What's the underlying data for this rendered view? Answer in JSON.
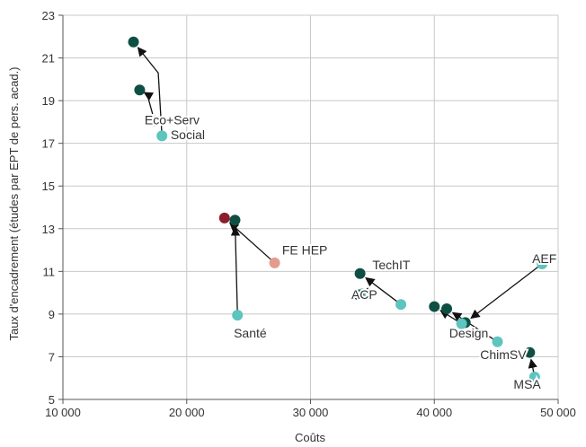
{
  "chart_data": {
    "type": "scatter",
    "xlabel": "Coûts",
    "ylabel": "Taux d'encadrement (études par EPT de pers. acad.)",
    "xlim": [
      10000,
      50000
    ],
    "ylim": [
      5,
      23
    ],
    "x_ticks": [
      10000,
      20000,
      30000,
      40000,
      50000
    ],
    "x_tick_labels": [
      "10 000",
      "20 000",
      "30 000",
      "40 000",
      "50 000"
    ],
    "y_ticks": [
      5,
      7,
      9,
      11,
      13,
      15,
      17,
      19,
      21,
      23
    ],
    "grid": true,
    "colors": {
      "start": "#5ec4be",
      "mid": "#0e4f44",
      "end": "#0e4f44",
      "hep_start": "#e49a8c",
      "hep_end": "#8c1d2a",
      "arrow": "#111111"
    },
    "groups": [
      {
        "label": "Eco+Serv",
        "points": [
          {
            "x": 17400,
            "y": 18.05,
            "role": "start"
          },
          {
            "x": 16800,
            "y": 19.3,
            "role": "mid"
          },
          {
            "x": 16200,
            "y": 19.5,
            "role": "end"
          }
        ],
        "label_pos": [
          16600,
          17.9
        ]
      },
      {
        "label": "Social",
        "points": [
          {
            "x": 18000,
            "y": 17.35,
            "role": "start"
          },
          {
            "x": 17700,
            "y": 20.3,
            "role": "mid"
          },
          {
            "x": 15700,
            "y": 21.75,
            "role": "end"
          }
        ],
        "label_pos": [
          18700,
          17.2
        ]
      },
      {
        "label": "Santé",
        "points": [
          {
            "x": 24100,
            "y": 8.95,
            "role": "start"
          },
          {
            "x": 23900,
            "y": 13.4,
            "role": "end"
          }
        ],
        "label_pos": [
          23800,
          7.9
        ]
      },
      {
        "label": "FE HEP",
        "points": [
          {
            "x": 27100,
            "y": 11.4,
            "role": "hep_start"
          },
          {
            "x": 23050,
            "y": 13.5,
            "role": "hep_end"
          }
        ],
        "label_pos": [
          27700,
          11.8
        ]
      },
      {
        "label": "TechIT",
        "points": [
          {
            "x": 37300,
            "y": 9.45,
            "role": "start"
          },
          {
            "x": 34000,
            "y": 10.9,
            "role": "end"
          }
        ],
        "label_pos": [
          35000,
          11.1
        ]
      },
      {
        "label": "ACP",
        "points": [
          {
            "x": 34200,
            "y": 9.95,
            "role": "start"
          },
          {
            "x": 33900,
            "y": 9.9,
            "role": "end"
          }
        ],
        "label_pos": [
          33300,
          9.7
        ]
      },
      {
        "label": "AEF",
        "points": [
          {
            "x": 48700,
            "y": 11.35,
            "role": "start"
          },
          {
            "x": 42500,
            "y": 8.6,
            "role": "end"
          }
        ],
        "label_pos": [
          47900,
          11.4
        ]
      },
      {
        "label": "Design",
        "points": [
          {
            "x": 42200,
            "y": 8.55,
            "role": "start"
          },
          {
            "x": 40000,
            "y": 9.35,
            "role": "end"
          }
        ],
        "label_pos": [
          41200,
          7.9
        ]
      },
      {
        "label": "ChimSV",
        "points": [
          {
            "x": 45100,
            "y": 7.7,
            "role": "start"
          },
          {
            "x": 41000,
            "y": 9.25,
            "role": "end"
          }
        ],
        "label_pos": [
          43700,
          6.9
        ]
      },
      {
        "label": "MSA",
        "points": [
          {
            "x": 48100,
            "y": 6.05,
            "role": "start"
          },
          {
            "x": 47700,
            "y": 7.2,
            "role": "end"
          }
        ],
        "label_pos": [
          46400,
          5.5
        ]
      }
    ]
  }
}
